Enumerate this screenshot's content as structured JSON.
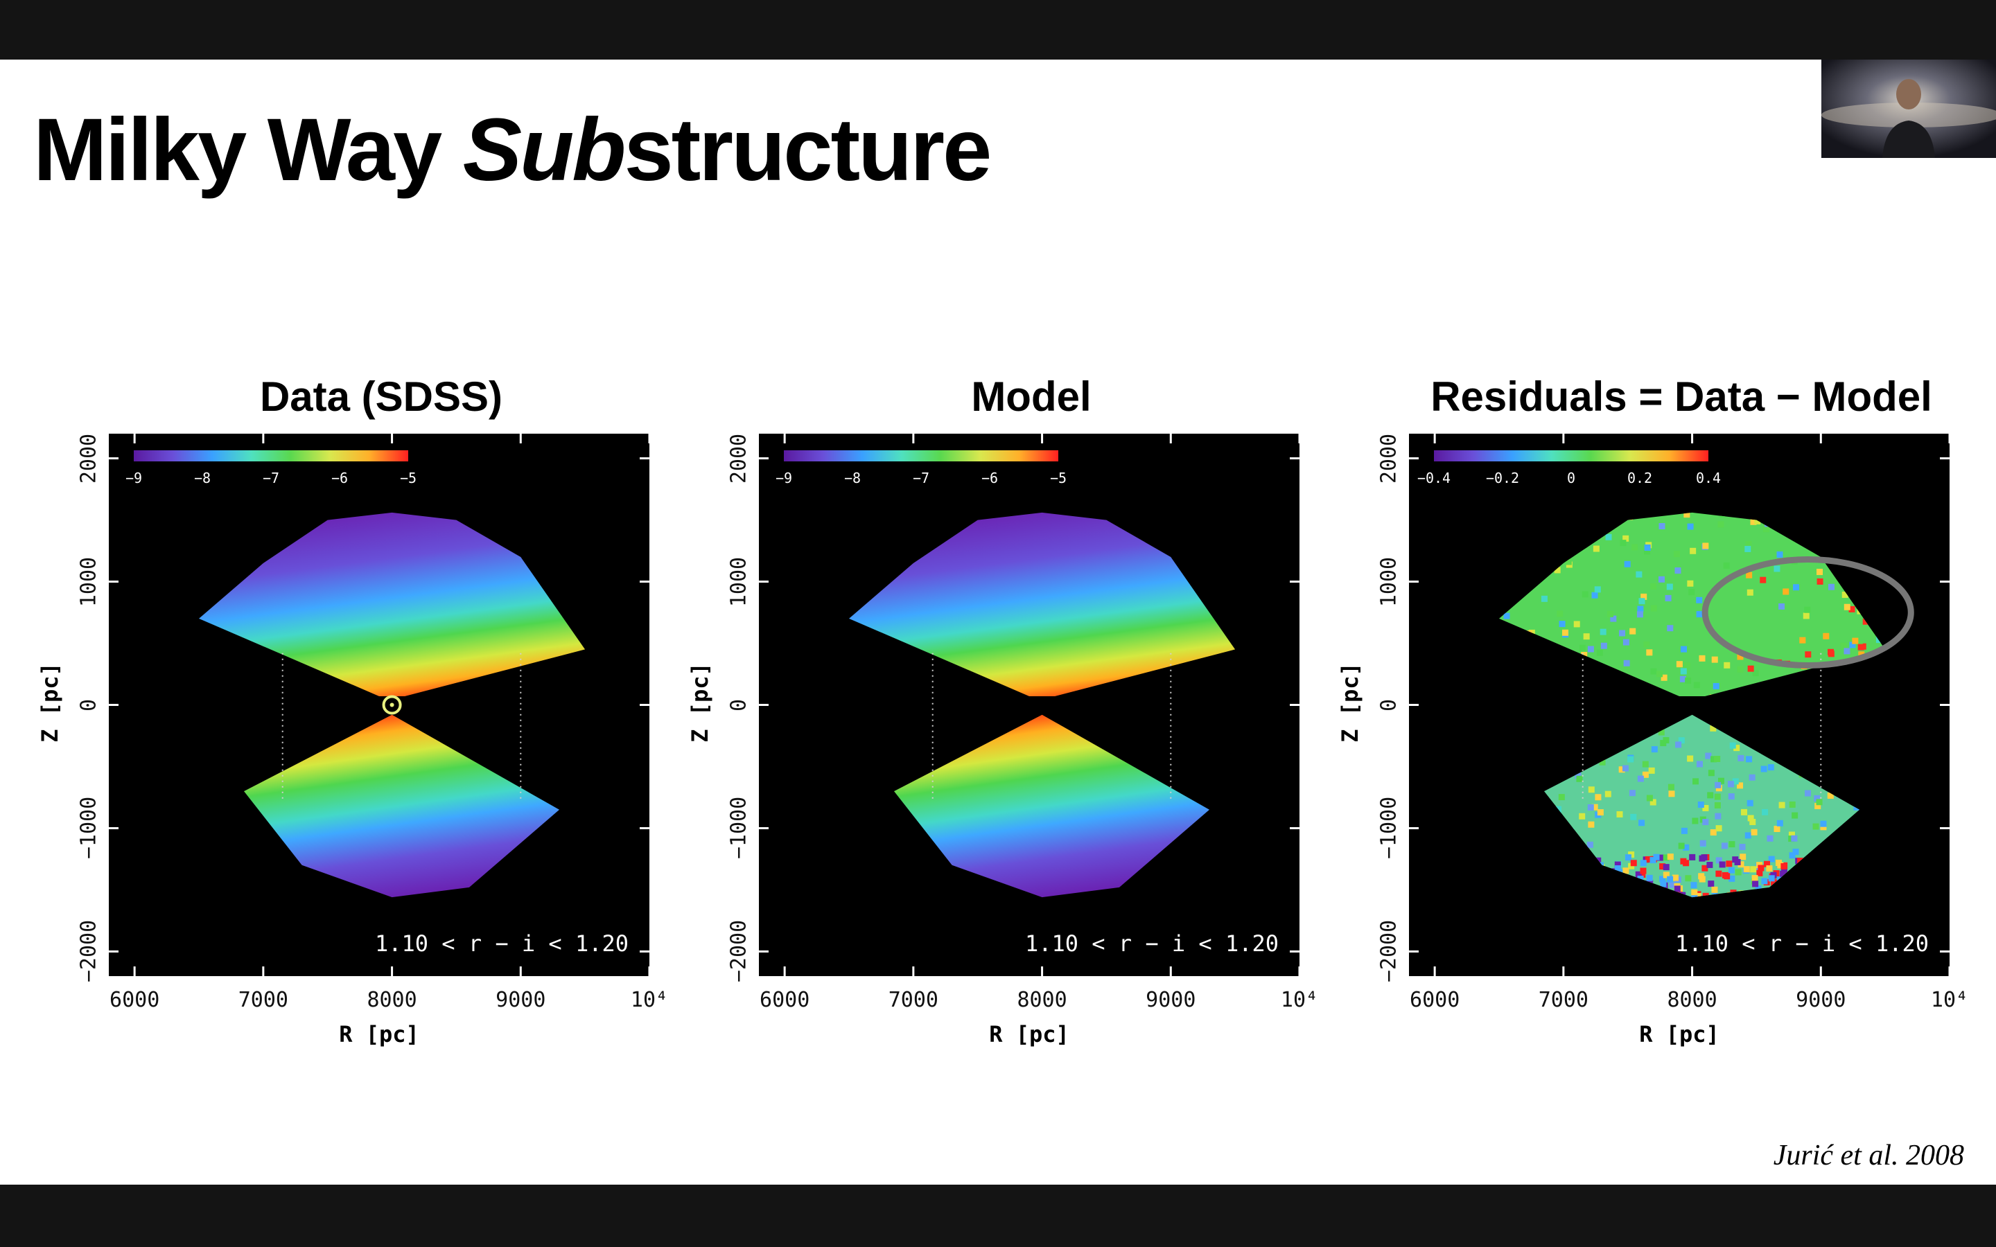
{
  "slide": {
    "title_part1": "Milky Way ",
    "title_italic": "Sub",
    "title_part2": "structure",
    "citation": "Jurić et al. 2008"
  },
  "webcam": {
    "icon": "presenter-webcam-icon"
  },
  "chart_data": [
    {
      "type": "heatmap",
      "title": "Data (SDSS)",
      "xlabel": "R [pc]",
      "ylabel": "Z [pc]",
      "xlim": [
        5800,
        10000
      ],
      "ylim": [
        -2200,
        2200
      ],
      "xticks": [
        "6000",
        "7000",
        "8000",
        "9000",
        "10⁴"
      ],
      "yticks": [
        "2000",
        "1000",
        "0",
        "−1000",
        "−2000"
      ],
      "colorbar": {
        "range": [
          -9,
          -5
        ],
        "ticks": [
          "−9",
          "−8",
          "−7",
          "−6",
          "−5"
        ]
      },
      "annotation": "1.10 < r − i < 1.20",
      "marker": {
        "x": 8000,
        "y": 0,
        "label": "Sun"
      }
    },
    {
      "type": "heatmap",
      "title": "Model",
      "xlabel": "R [pc]",
      "ylabel": "Z [pc]",
      "xlim": [
        5800,
        10000
      ],
      "ylim": [
        -2200,
        2200
      ],
      "xticks": [
        "6000",
        "7000",
        "8000",
        "9000",
        "10⁴"
      ],
      "yticks": [
        "2000",
        "1000",
        "0",
        "−1000",
        "−2000"
      ],
      "colorbar": {
        "range": [
          -9,
          -5
        ],
        "ticks": [
          "−9",
          "−8",
          "−7",
          "−6",
          "−5"
        ]
      },
      "annotation": "1.10 < r − i < 1.20"
    },
    {
      "type": "heatmap",
      "title": "Residuals = Data − Model",
      "xlabel": "R [pc]",
      "ylabel": "Z [pc]",
      "xlim": [
        5800,
        10000
      ],
      "ylim": [
        -2200,
        2200
      ],
      "xticks": [
        "6000",
        "7000",
        "8000",
        "9000",
        "10⁴"
      ],
      "yticks": [
        "2000",
        "1000",
        "0",
        "−1000",
        "−2000"
      ],
      "colorbar": {
        "range": [
          -0.4,
          0.4
        ],
        "ticks": [
          "−0.4",
          "−0.2",
          "0",
          "0.2",
          "0.4"
        ]
      },
      "annotation": "1.10 < r − i < 1.20",
      "highlight": {
        "cx": 8900,
        "cy": 750,
        "rx": 800,
        "ry": 430
      }
    }
  ],
  "colors": {
    "background": "#ffffff",
    "frame": "#141414",
    "plot_bg": "#000000",
    "highlight_ring": "#777777"
  }
}
